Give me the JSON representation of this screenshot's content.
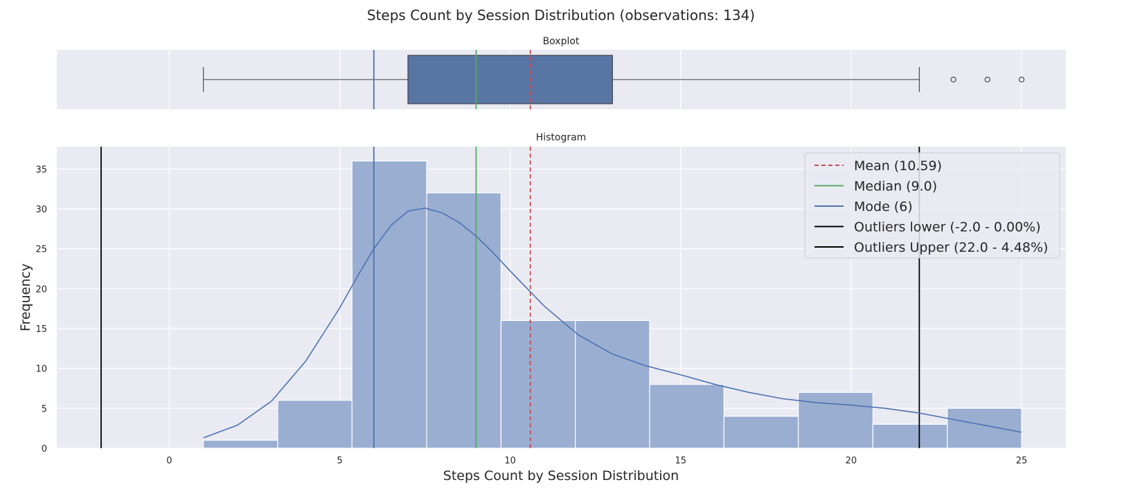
{
  "chart_data": {
    "type": "bar",
    "title": "Steps Count by Session Distribution (observations: 134)",
    "xlabel": "Steps Count by Session Distribution",
    "ylabel": "Frequency",
    "xlim": [
      -3.3,
      26.3
    ],
    "ylim": [
      0,
      37.8
    ],
    "x_ticks": [
      0,
      5,
      10,
      15,
      20,
      25
    ],
    "y_ticks": [
      0,
      5,
      10,
      15,
      20,
      25,
      30,
      35
    ],
    "grid": true,
    "legend_position": "top-right",
    "colors": {
      "panel": "#eaeaf2",
      "bars": "#9aaed2",
      "box": "#5875a4",
      "kde": "#4c72b0",
      "mean": "#c44e52",
      "median": "#55a868",
      "mode": "#4c72b0",
      "outliers": "#000000"
    },
    "boxplot": {
      "title": "Boxplot",
      "whisker_low": 1,
      "q1": 7,
      "median": 9,
      "q3": 13,
      "whisker_high": 22,
      "fliers": [
        23,
        24,
        25
      ]
    },
    "histogram": {
      "title": "Histogram",
      "bins": [
        {
          "x0": 1.0,
          "x1": 3.18,
          "count": 1
        },
        {
          "x0": 3.18,
          "x1": 5.36,
          "count": 6
        },
        {
          "x0": 5.36,
          "x1": 7.55,
          "count": 36
        },
        {
          "x0": 7.55,
          "x1": 9.73,
          "count": 32
        },
        {
          "x0": 9.73,
          "x1": 11.91,
          "count": 16
        },
        {
          "x0": 11.91,
          "x1": 14.09,
          "count": 16
        },
        {
          "x0": 14.09,
          "x1": 16.27,
          "count": 8
        },
        {
          "x0": 16.27,
          "x1": 18.45,
          "count": 4
        },
        {
          "x0": 18.45,
          "x1": 20.64,
          "count": 7
        },
        {
          "x0": 20.64,
          "x1": 22.82,
          "count": 3
        },
        {
          "x0": 22.82,
          "x1": 25.0,
          "count": 5
        }
      ],
      "kde": {
        "x": [
          1,
          2,
          3,
          4,
          5,
          5.5,
          6,
          6.5,
          7,
          7.5,
          8,
          8.5,
          9,
          9.5,
          10,
          11,
          12,
          13,
          14,
          15,
          16,
          17,
          18,
          19,
          20,
          21,
          22,
          23,
          24,
          25
        ],
        "y": [
          1.3,
          2.9,
          5.9,
          10.9,
          17.6,
          21.4,
          25.0,
          27.9,
          29.7,
          30.1,
          29.5,
          28.3,
          26.6,
          24.5,
          22.2,
          17.8,
          14.2,
          11.8,
          10.3,
          9.2,
          8.0,
          7.0,
          6.2,
          5.7,
          5.4,
          5.0,
          4.4,
          3.6,
          2.8,
          2.0
        ]
      }
    },
    "reference_lines": [
      {
        "name": "Mean (10.59)",
        "value": 10.59,
        "color": "#c44e52",
        "style": "dashed"
      },
      {
        "name": "Median (9.0)",
        "value": 9.0,
        "color": "#55a868",
        "style": "solid"
      },
      {
        "name": "Mode (6)",
        "value": 6,
        "color": "#4c72b0",
        "style": "solid"
      },
      {
        "name": "Outliers lower (-2.0 - 0.00%)",
        "value": -2.0,
        "color": "#000000",
        "style": "solid"
      },
      {
        "name": "Outliers Upper (22.0 - 4.48%)",
        "value": 22.0,
        "color": "#000000",
        "style": "solid"
      }
    ]
  }
}
